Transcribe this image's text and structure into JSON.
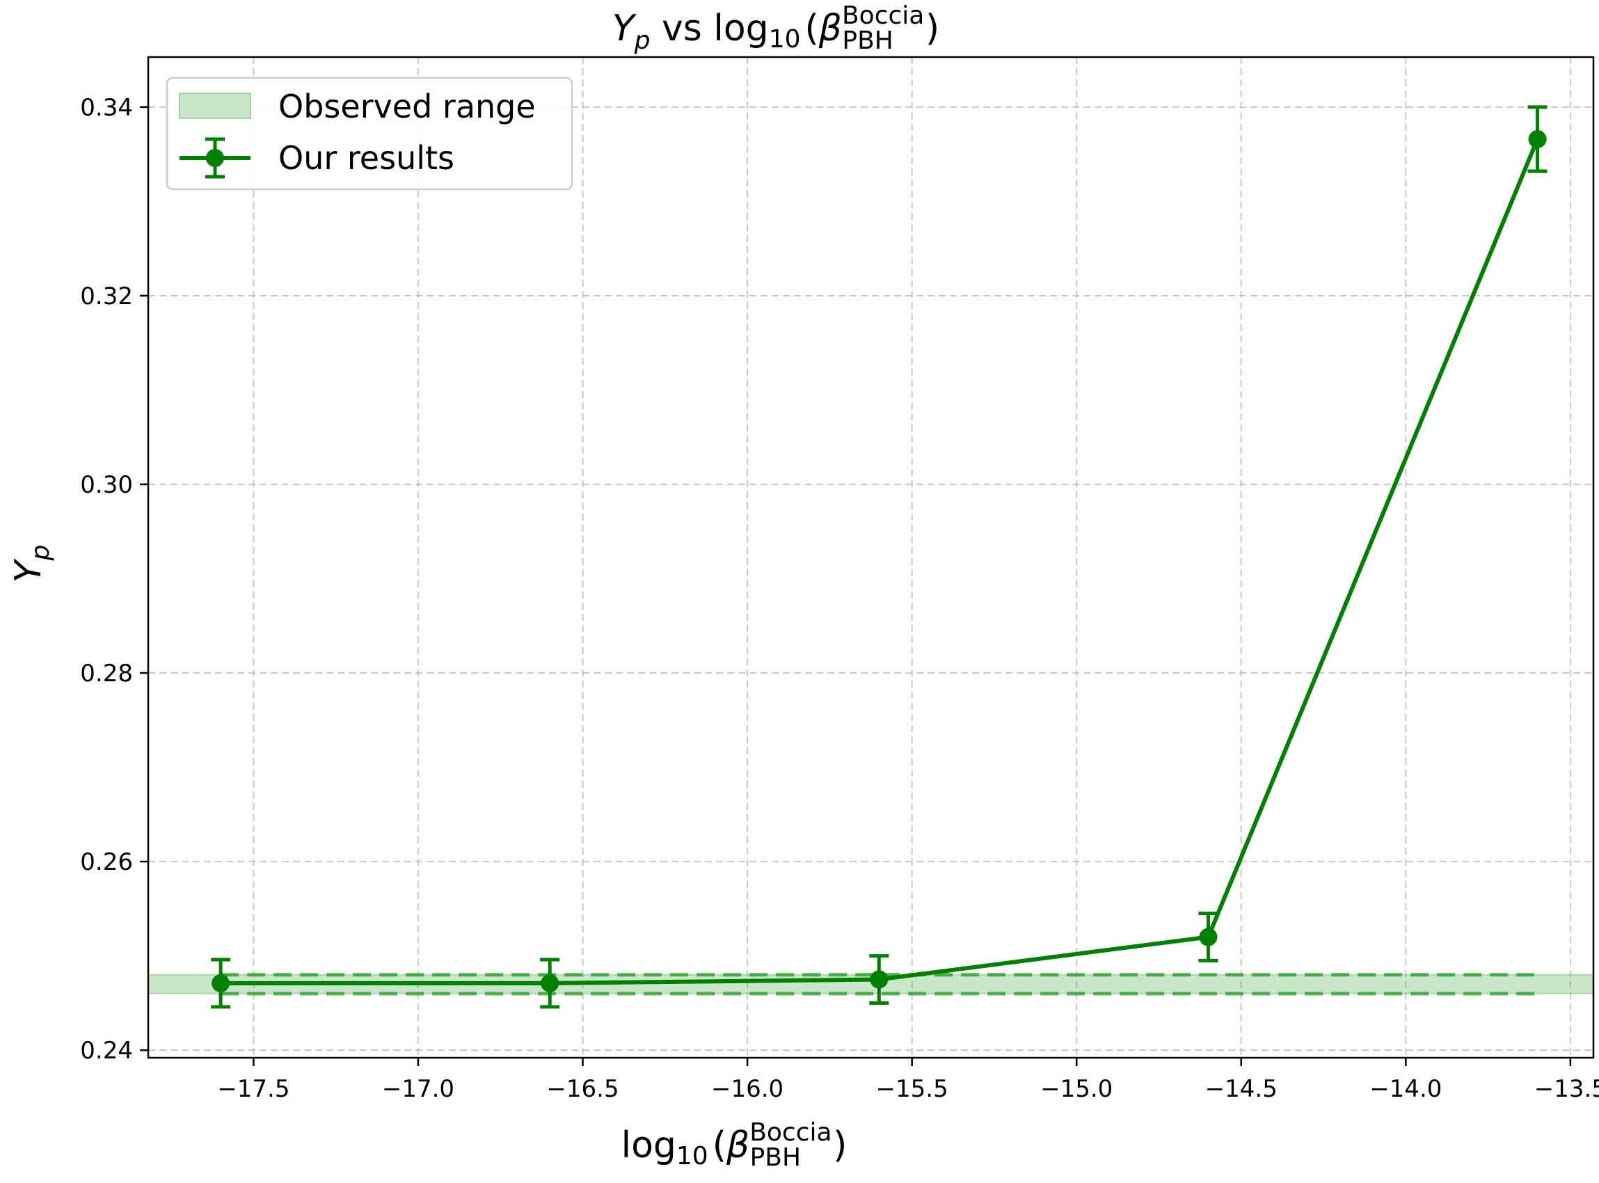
{
  "chart_data": {
    "type": "line",
    "title": {
      "y_symbol": "Y",
      "y_subscript": "p",
      "vs": " vs ",
      "log": "log",
      "log_base": "10",
      "open_paren": "(",
      "beta": "β",
      "beta_sub": "PBH",
      "beta_sup": "Boccia",
      "close_paren": ")"
    },
    "xlabel": {
      "log": "log",
      "log_base": "10",
      "open_paren": "(",
      "beta": "β",
      "beta_sub": "PBH",
      "beta_sup": "Boccia",
      "close_paren": ")"
    },
    "ylabel": {
      "symbol": "Y",
      "subscript": "p"
    },
    "xlim": [
      -17.82,
      -13.43
    ],
    "ylim": [
      0.2392,
      0.3453
    ],
    "x_ticks": [
      -17.5,
      -17.0,
      -16.5,
      -16.0,
      -15.5,
      -15.0,
      -14.5,
      -14.0,
      -13.5
    ],
    "x_tick_labels": [
      "−17.5",
      "−17.0",
      "−16.5",
      "−16.0",
      "−15.5",
      "−15.0",
      "−14.5",
      "−14.0",
      "−13.5"
    ],
    "y_ticks": [
      0.24,
      0.26,
      0.28,
      0.3,
      0.32,
      0.34
    ],
    "y_tick_labels": [
      "0.24",
      "0.26",
      "0.28",
      "0.30",
      "0.32",
      "0.34"
    ],
    "grid": true,
    "legend_position": "top-left",
    "band": {
      "name": "Observed range",
      "y_low": 0.246,
      "y_high": 0.248,
      "color": "#2ca02c"
    },
    "series": [
      {
        "name": "Our results",
        "color": "#008000",
        "x": [
          -17.6,
          -16.6,
          -15.6,
          -14.6,
          -13.6
        ],
        "y": [
          0.2471,
          0.2471,
          0.2475,
          0.252,
          0.3366
        ],
        "yerr": [
          0.0025,
          0.0025,
          0.0025,
          0.0025,
          0.0034
        ]
      }
    ]
  }
}
